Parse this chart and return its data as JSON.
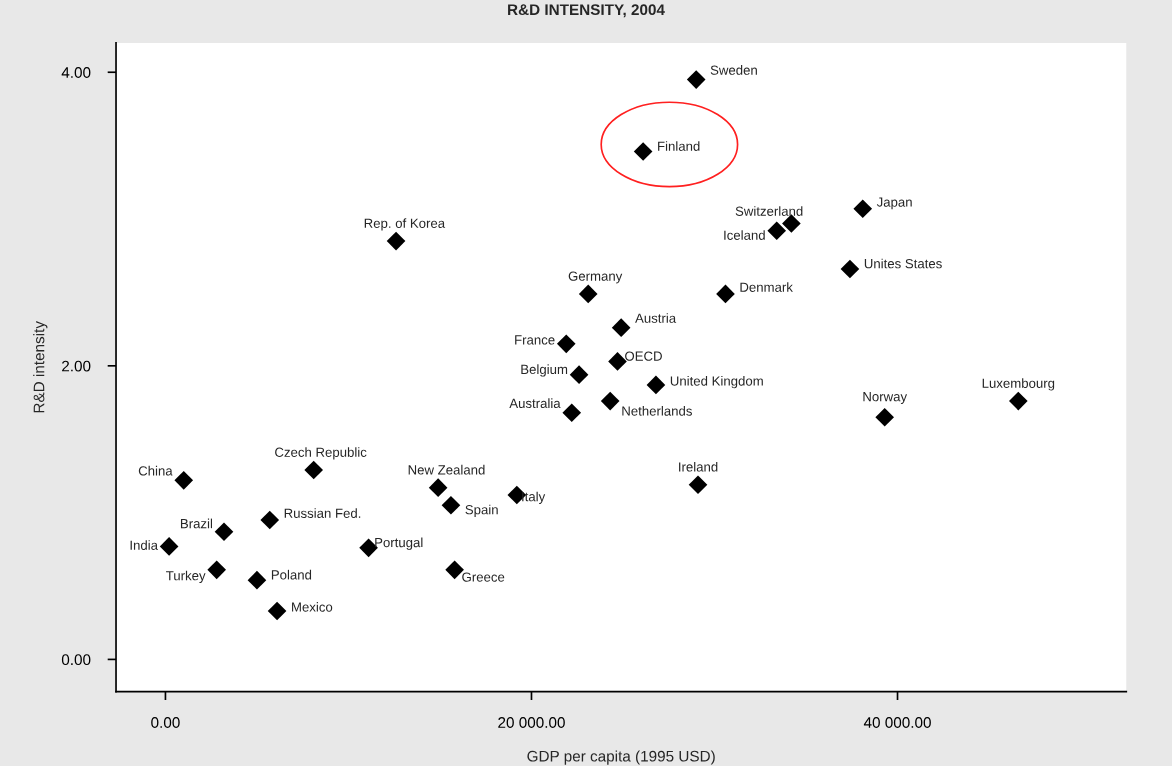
{
  "chart_data": {
    "type": "scatter",
    "title": "R&D INTENSITY, 2004",
    "xlabel": "GDP per capita (1995 USD)",
    "ylabel": "R&D intensity",
    "x": [
      29000,
      26100,
      12600,
      34200,
      33400,
      38100,
      37400,
      30600,
      23100,
      24900,
      21900,
      24700,
      22600,
      26800,
      22200,
      24300,
      39300,
      46600,
      29100,
      19200,
      14900,
      15600,
      15800,
      11100,
      8100,
      1000,
      5700,
      3200,
      200,
      2800,
      5000,
      6100
    ],
    "series": [
      {
        "color": "#000000",
        "values": [
          3.95,
          3.46,
          2.85,
          2.97,
          2.92,
          3.07,
          2.66,
          2.49,
          2.49,
          2.26,
          2.15,
          2.03,
          1.94,
          1.87,
          1.68,
          1.76,
          1.65,
          1.76,
          1.19,
          1.12,
          1.17,
          1.05,
          0.61,
          0.76,
          1.29,
          1.22,
          0.95,
          0.87,
          0.77,
          0.61,
          0.54,
          0.33
        ]
      }
    ],
    "annotations": [
      {
        "text": "Sweden",
        "x": 29000,
        "y": 3.95
      },
      {
        "text": "Finland",
        "x": 26100,
        "y": 3.46
      },
      {
        "text": "Rep. of Korea",
        "x": 12600,
        "y": 2.85
      },
      {
        "text": "Switzerland",
        "x": 34200,
        "y": 2.97
      },
      {
        "text": "Iceland",
        "x": 33400,
        "y": 2.92
      },
      {
        "text": "Japan",
        "x": 38100,
        "y": 3.07
      },
      {
        "text": "Unites States",
        "x": 37400,
        "y": 2.66
      },
      {
        "text": "Denmark",
        "x": 30600,
        "y": 2.49
      },
      {
        "text": "Germany",
        "x": 23100,
        "y": 2.49
      },
      {
        "text": "Austria",
        "x": 24900,
        "y": 2.26
      },
      {
        "text": "France",
        "x": 21900,
        "y": 2.15
      },
      {
        "text": "OECD",
        "x": 24700,
        "y": 2.03
      },
      {
        "text": "Belgium",
        "x": 22600,
        "y": 1.94
      },
      {
        "text": "United Kingdom",
        "x": 26800,
        "y": 1.87
      },
      {
        "text": "Australia",
        "x": 22200,
        "y": 1.68
      },
      {
        "text": "Netherlands",
        "x": 24300,
        "y": 1.76
      },
      {
        "text": "Norway",
        "x": 39300,
        "y": 1.65
      },
      {
        "text": "Luxembourg",
        "x": 46600,
        "y": 1.76
      },
      {
        "text": "Ireland",
        "x": 29100,
        "y": 1.19
      },
      {
        "text": "Italy",
        "x": 19200,
        "y": 1.12
      },
      {
        "text": "New Zealand",
        "x": 14900,
        "y": 1.17
      },
      {
        "text": "Spain",
        "x": 15600,
        "y": 1.05
      },
      {
        "text": "Greece",
        "x": 15800,
        "y": 0.61
      },
      {
        "text": "Portugal",
        "x": 11100,
        "y": 0.76
      },
      {
        "text": "Czech Republic",
        "x": 8100,
        "y": 1.29
      },
      {
        "text": "China",
        "x": 1000,
        "y": 1.22
      },
      {
        "text": "Russian Fed.",
        "x": 5700,
        "y": 0.95
      },
      {
        "text": "Brazil",
        "x": 3200,
        "y": 0.87
      },
      {
        "text": "India",
        "x": 200,
        "y": 0.77
      },
      {
        "text": "Turkey",
        "x": 2800,
        "y": 0.61
      },
      {
        "text": "Poland",
        "x": 5000,
        "y": 0.54
      },
      {
        "text": "Mexico",
        "x": 6100,
        "y": 0.33
      }
    ],
    "xlim": [
      -2700,
      52500
    ],
    "ylim": [
      -0.22,
      4.2
    ],
    "xticks": [
      {
        "value": 0,
        "label": "0.00"
      },
      {
        "value": 20000,
        "label": "20 000.00"
      },
      {
        "value": 40000,
        "label": "40 000.00"
      }
    ],
    "yticks": [
      {
        "value": 0,
        "label": "0.00"
      },
      {
        "value": 2,
        "label": "2.00"
      },
      {
        "value": 4,
        "label": "4.00"
      }
    ],
    "marker": "diamond",
    "grid": false,
    "legend": false
  }
}
